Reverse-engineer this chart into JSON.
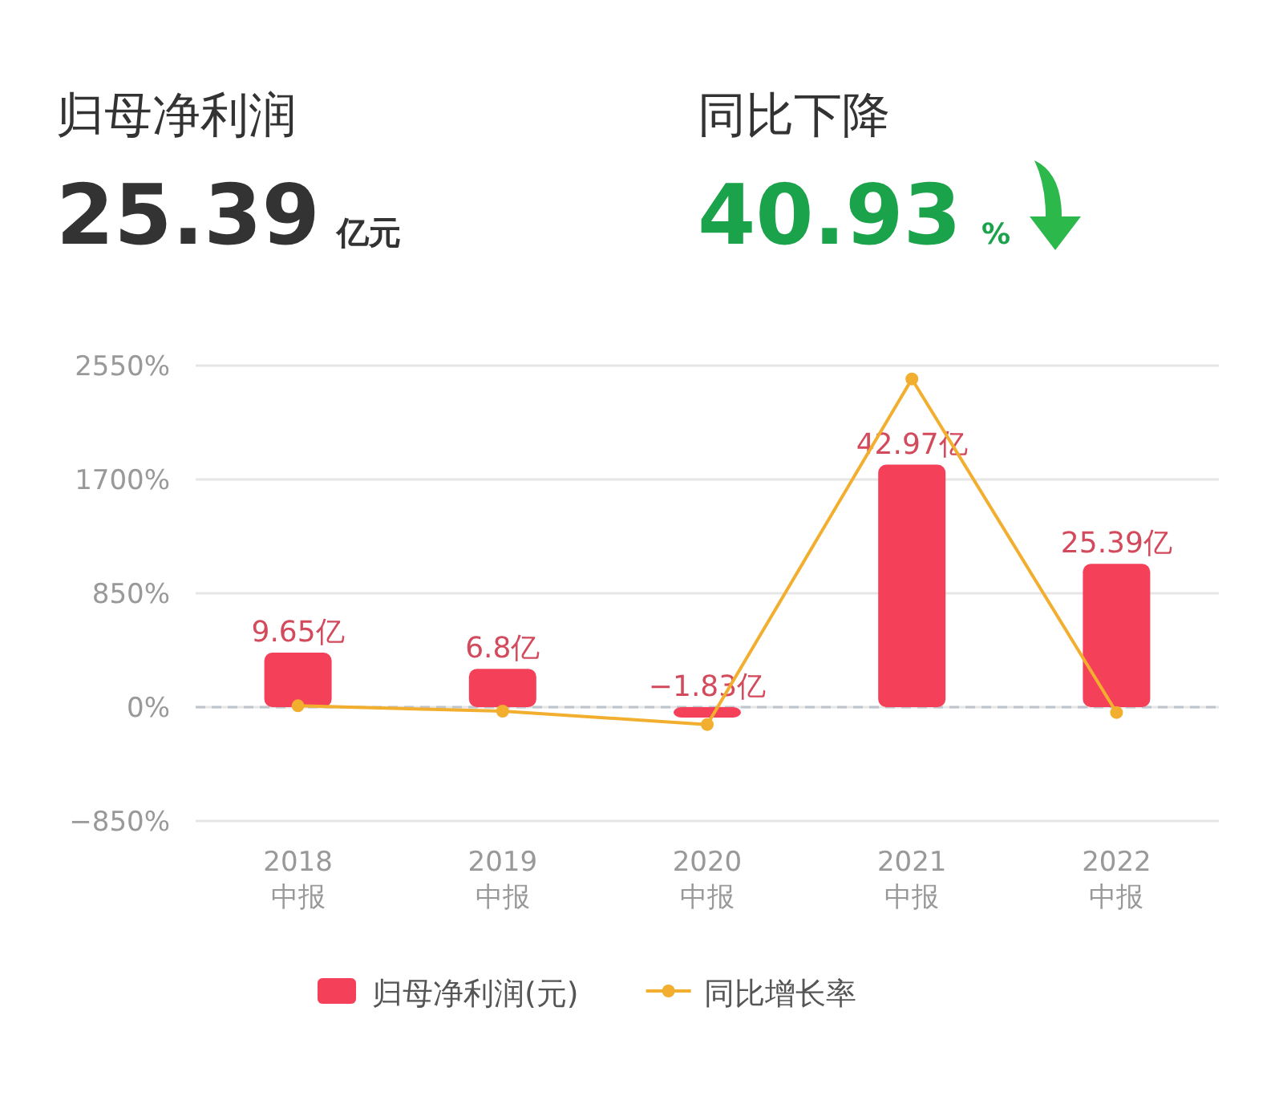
{
  "chart_data": {
    "type": "bar",
    "annotations": [
      "归母净利润",
      "25.39",
      "亿元",
      "同比下降",
      "40.93",
      "%"
    ],
    "categories": [
      "2018\n中报",
      "2019\n中报",
      "2020\n中报",
      "2021\n中报",
      "2022\n中报"
    ],
    "series": [
      {
        "name": "归母净利润(元)",
        "axis": "y2",
        "color": "#f5405a",
        "values": [
          9.65,
          6.8,
          -1.83,
          42.97,
          25.39
        ],
        "value_labels": [
          "9.65亿",
          "6.8亿",
          "−1.83亿",
          "42.97亿",
          "25.39亿"
        ]
      },
      {
        "name": "同比增长率",
        "type": "line",
        "color": "#f2ae2e",
        "marker": "circle",
        "values": [
          10,
          -30,
          -130,
          2450,
          -40
        ]
      }
    ],
    "ylim": [
      -850,
      2550
    ],
    "yticks": [
      {
        "value": -850,
        "label": "−850%"
      },
      {
        "value": 0,
        "label": "0%"
      },
      {
        "value": 850,
        "label": "850%"
      },
      {
        "value": 1700,
        "label": "1700%"
      },
      {
        "value": 2550,
        "label": "2550%"
      }
    ],
    "grid": "y",
    "ref_lines": [
      {
        "axis": "y",
        "value": 0,
        "color": "#bfc5cc",
        "line_style": "dashed"
      }
    ],
    "legend": "bottom"
  }
}
